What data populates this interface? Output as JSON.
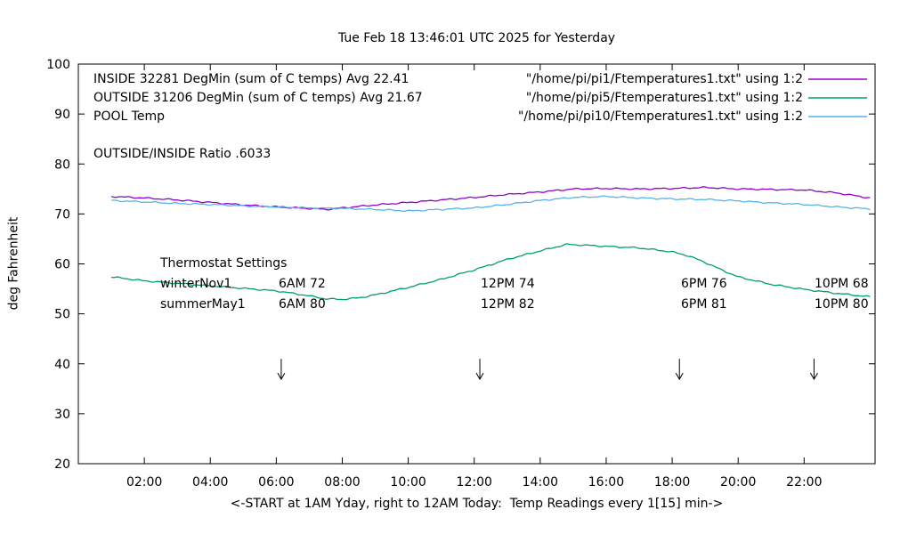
{
  "header": {
    "title": "Tue Feb 18 13:46:01 UTC 2025 for Yesterday"
  },
  "axes": {
    "y_label": "deg Fahrenheit",
    "x_label": "<-START at 1AM Yday, right to 12AM Today:  Temp Readings every 1[15] min->"
  },
  "legend": {
    "entries": [
      {
        "name": "INSIDE",
        "label": "INSIDE 32281 DegMin (sum of C temps) Avg 22.41",
        "file": "\"/home/pi/pi1/Ftemperatures1.txt\" using 1:2",
        "color": "#9400d3"
      },
      {
        "name": "OUTSIDE",
        "label": "OUTSIDE 31206 DegMin (sum of C temps) Avg 21.67",
        "file": "\"/home/pi/pi5/Ftemperatures1.txt\" using 1:2",
        "color": "#009e73"
      },
      {
        "name": "POOL",
        "label": "POOL Temp",
        "file": "\"/home/pi/pi10/Ftemperatures1.txt\" using 1:2",
        "color": "#56b4e9"
      }
    ]
  },
  "annotations": {
    "ratio": "OUTSIDE/INSIDE Ratio .6033",
    "thermostat": {
      "heading": "Thermostat Settings",
      "rows": [
        {
          "name": "winterNov1",
          "c1": "6AM 72",
          "c2": "12PM 74",
          "c3": "6PM 76",
          "c4": "10PM 68"
        },
        {
          "name": "summerMay1",
          "c1": "6AM 80",
          "c2": "12PM 82",
          "c3": "6PM 81",
          "c4": "10PM 80"
        }
      ]
    }
  },
  "chart_data": {
    "type": "line",
    "title": "Tue Feb 18 13:46:01 UTC 2025 for Yesterday",
    "xlabel": "<-START at 1AM Yday, right to 12AM Today:  Temp Readings every 1[15] min->",
    "ylabel": "deg Fahrenheit",
    "xlim": [
      0,
      24.15
    ],
    "ylim": [
      20,
      100
    ],
    "grid": false,
    "legend_position": "top-left-inside",
    "x_ticks": [
      {
        "value": 2,
        "label": "02:00"
      },
      {
        "value": 4,
        "label": "04:00"
      },
      {
        "value": 6,
        "label": "06:00"
      },
      {
        "value": 8,
        "label": "08:00"
      },
      {
        "value": 10,
        "label": "10:00"
      },
      {
        "value": 12,
        "label": "12:00"
      },
      {
        "value": 14,
        "label": "14:00"
      },
      {
        "value": 16,
        "label": "16:00"
      },
      {
        "value": 18,
        "label": "18:00"
      },
      {
        "value": 20,
        "label": "20:00"
      },
      {
        "value": 22,
        "label": "22:00"
      }
    ],
    "y_ticks": [
      20,
      30,
      40,
      50,
      60,
      70,
      80,
      90,
      100
    ],
    "arrows": [
      {
        "x": 6.15,
        "y_from": 41,
        "y_to": 36.9
      },
      {
        "x": 12.17,
        "y_from": 41,
        "y_to": 36.9
      },
      {
        "x": 18.22,
        "y_from": 41,
        "y_to": 36.9
      },
      {
        "x": 22.3,
        "y_from": 41,
        "y_to": 36.9
      }
    ],
    "series": [
      {
        "name": "INSIDE",
        "color": "#9400d3",
        "x": [
          1,
          2,
          3,
          4,
          5,
          6,
          7,
          7.5,
          8,
          9,
          10,
          11,
          12,
          13,
          14,
          15,
          16,
          17,
          18,
          19,
          20,
          21,
          22,
          23,
          24
        ],
        "y": [
          73.5,
          73.2,
          72.8,
          72.3,
          71.8,
          71.4,
          71.1,
          70.9,
          71.2,
          71.8,
          72.3,
          72.8,
          73.3,
          73.9,
          74.4,
          75.0,
          75.1,
          75.0,
          75.1,
          75.3,
          75.0,
          74.9,
          74.8,
          74.2,
          73.2
        ]
      },
      {
        "name": "OUTSIDE",
        "color": "#009e73",
        "x": [
          1,
          2,
          3,
          4,
          5,
          6,
          7,
          7.5,
          8,
          8.5,
          9,
          10,
          11,
          12,
          13,
          14,
          14.8,
          15.5,
          16,
          17,
          18,
          18.5,
          19,
          19.5,
          20,
          21,
          22,
          23,
          24
        ],
        "y": [
          57.4,
          56.6,
          56.1,
          55.6,
          55.1,
          54.6,
          53.6,
          53.0,
          52.9,
          53.2,
          53.8,
          55.3,
          56.9,
          58.8,
          60.9,
          62.6,
          63.9,
          63.7,
          63.5,
          63.2,
          62.4,
          61.6,
          60.3,
          58.8,
          57.4,
          55.9,
          54.9,
          54.1,
          53.4
        ]
      },
      {
        "name": "POOL",
        "color": "#56b4e9",
        "x": [
          1,
          2,
          3,
          4,
          5,
          6,
          7,
          8,
          9,
          10,
          11,
          12,
          13,
          14,
          15,
          16,
          17,
          18,
          19,
          20,
          21,
          22,
          23,
          24
        ],
        "y": [
          72.7,
          72.4,
          72.1,
          71.9,
          71.6,
          71.4,
          71.2,
          71.1,
          70.9,
          70.6,
          70.9,
          71.2,
          71.9,
          72.7,
          73.3,
          73.5,
          73.2,
          73.0,
          72.9,
          72.6,
          72.2,
          71.9,
          71.4,
          71.0
        ]
      }
    ]
  }
}
